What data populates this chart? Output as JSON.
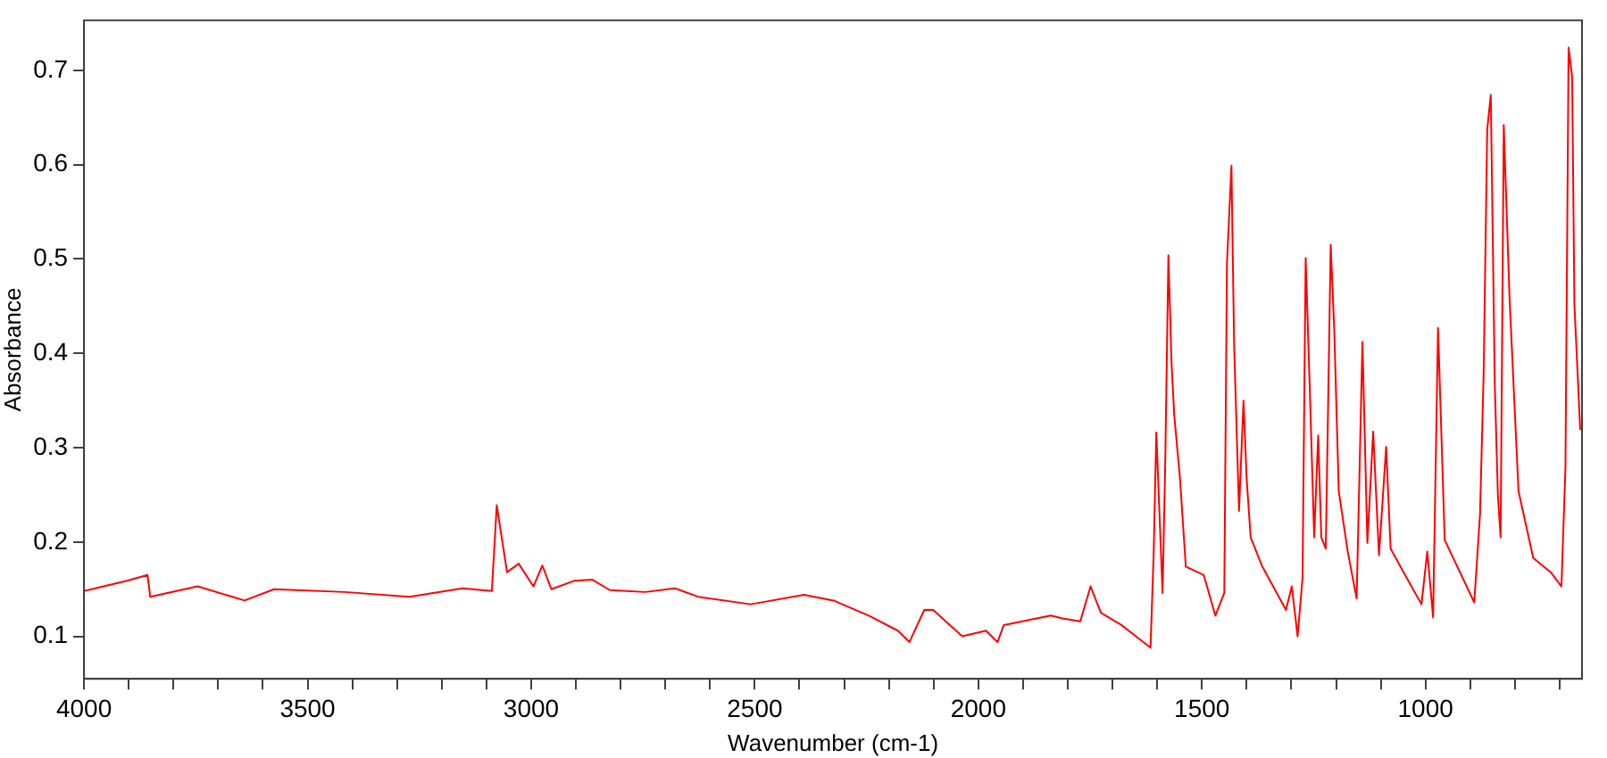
{
  "chart_data": {
    "type": "line",
    "xlabel": "Wavenumber (cm-1)",
    "ylabel": "Absorbance",
    "xlim": [
      4000,
      650
    ],
    "ylim": [
      0.055,
      0.753
    ],
    "xticks": [
      4000,
      {
        "value": 3900,
        "label": null
      },
      {
        "value": 3800,
        "label": null
      },
      {
        "value": 3700,
        "label": null
      },
      {
        "value": 3600,
        "label": null
      },
      3500,
      {
        "value": 3400,
        "label": null
      },
      {
        "value": 3300,
        "label": null
      },
      {
        "value": 3200,
        "label": null
      },
      {
        "value": 3100,
        "label": null
      },
      3000,
      {
        "value": 2900,
        "label": null
      },
      {
        "value": 2800,
        "label": null
      },
      {
        "value": 2700,
        "label": null
      },
      {
        "value": 2600,
        "label": null
      },
      2500,
      {
        "value": 2400,
        "label": null
      },
      {
        "value": 2300,
        "label": null
      },
      {
        "value": 2200,
        "label": null
      },
      {
        "value": 2100,
        "label": null
      },
      2000,
      {
        "value": 1900,
        "label": null
      },
      {
        "value": 1800,
        "label": null
      },
      {
        "value": 1700,
        "label": null
      },
      {
        "value": 1600,
        "label": null
      },
      1500,
      {
        "value": 1400,
        "label": null
      },
      {
        "value": 1300,
        "label": null
      },
      {
        "value": 1200,
        "label": null
      },
      {
        "value": 1100,
        "label": null
      },
      1000,
      {
        "value": 900,
        "label": null
      },
      {
        "value": 800,
        "label": null
      },
      {
        "value": 700,
        "label": null
      }
    ],
    "yticks": [
      0.1,
      0.2,
      0.3,
      0.4,
      0.5,
      0.6,
      0.7
    ],
    "grid": false,
    "legend": false,
    "marker": "none",
    "line_style": "solid",
    "series": [
      {
        "color": "#ff0000",
        "x": [
          4000,
          3904,
          3858,
          3852,
          3746,
          3641,
          3575,
          3417,
          3272,
          3153,
          3088,
          3077,
          3054,
          3028,
          2995,
          2975,
          2955,
          2903,
          2863,
          2824,
          2745,
          2679,
          2627,
          2509,
          2390,
          2324,
          2245,
          2180,
          2154,
          2121,
          2101,
          2036,
          1983,
          1957,
          1943,
          1838,
          1812,
          1772,
          1749,
          1726,
          1680,
          1615,
          1608,
          1602,
          1588,
          1582,
          1575,
          1568,
          1562,
          1549,
          1536,
          1496,
          1470,
          1450,
          1444,
          1434,
          1428,
          1417,
          1407,
          1400,
          1391,
          1365,
          1312,
          1299,
          1286,
          1275,
          1268,
          1259,
          1249,
          1240,
          1233,
          1223,
          1212,
          1204,
          1194,
          1174,
          1154,
          1141,
          1130,
          1117,
          1104,
          1088,
          1078,
          1049,
          1009,
          996,
          983,
          972,
          957,
          891,
          878,
          870,
          862,
          854,
          845,
          838,
          832,
          825,
          812,
          792,
          759,
          720,
          696,
          687,
          680,
          672,
          667,
          654
        ],
        "values": [
          0.148,
          0.159,
          0.165,
          0.142,
          0.153,
          0.138,
          0.15,
          0.147,
          0.142,
          0.151,
          0.148,
          0.239,
          0.168,
          0.177,
          0.153,
          0.175,
          0.15,
          0.159,
          0.16,
          0.149,
          0.147,
          0.151,
          0.142,
          0.134,
          0.144,
          0.138,
          0.122,
          0.106,
          0.094,
          0.128,
          0.128,
          0.1,
          0.106,
          0.094,
          0.112,
          0.122,
          0.119,
          0.116,
          0.153,
          0.125,
          0.112,
          0.088,
          0.186,
          0.316,
          0.146,
          0.285,
          0.504,
          0.39,
          0.335,
          0.267,
          0.174,
          0.165,
          0.122,
          0.146,
          0.495,
          0.599,
          0.409,
          0.233,
          0.35,
          0.267,
          0.205,
          0.174,
          0.128,
          0.153,
          0.1,
          0.162,
          0.501,
          0.366,
          0.205,
          0.313,
          0.205,
          0.193,
          0.515,
          0.424,
          0.254,
          0.19,
          0.14,
          0.412,
          0.199,
          0.317,
          0.186,
          0.301,
          0.193,
          0.168,
          0.134,
          0.19,
          0.12,
          0.427,
          0.202,
          0.136,
          0.23,
          0.378,
          0.637,
          0.674,
          0.366,
          0.248,
          0.205,
          0.642,
          0.458,
          0.254,
          0.183,
          0.168,
          0.153,
          0.279,
          0.724,
          0.693,
          0.452,
          0.319
        ]
      }
    ]
  }
}
